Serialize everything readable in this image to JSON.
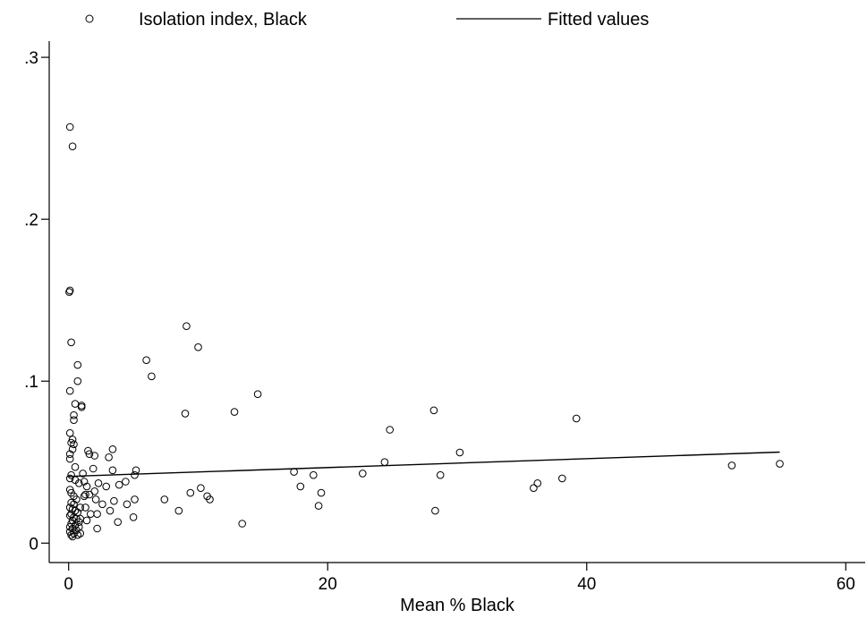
{
  "chart_data": {
    "type": "scatter",
    "xlabel": "Mean % Black",
    "ylabel": "",
    "xlim": [
      -1.5,
      61.5
    ],
    "ylim": [
      -0.012,
      0.31
    ],
    "x_ticks": [
      0,
      20,
      40,
      60
    ],
    "x_tick_labels": [
      "0",
      "20",
      "40",
      "60"
    ],
    "y_ticks": [
      0,
      0.1,
      0.2,
      0.3
    ],
    "y_tick_labels": [
      "0",
      ".1",
      ".2",
      ".3"
    ],
    "grid": false,
    "legend_position": "top",
    "series": [
      {
        "name": "Isolation index, Black",
        "kind": "scatter",
        "color": "#000000",
        "points": [
          [
            0.1,
            0.257
          ],
          [
            0.3,
            0.245
          ],
          [
            0.1,
            0.156
          ],
          [
            0.05,
            0.155
          ],
          [
            0.2,
            0.124
          ],
          [
            0.7,
            0.11
          ],
          [
            0.7,
            0.1
          ],
          [
            0.1,
            0.094
          ],
          [
            0.5,
            0.086
          ],
          [
            1.0,
            0.085
          ],
          [
            1.0,
            0.084
          ],
          [
            0.4,
            0.079
          ],
          [
            0.4,
            0.076
          ],
          [
            0.1,
            0.068
          ],
          [
            0.3,
            0.064
          ],
          [
            0.2,
            0.062
          ],
          [
            0.4,
            0.061
          ],
          [
            0.3,
            0.058
          ],
          [
            0.1,
            0.055
          ],
          [
            0.1,
            0.052
          ],
          [
            0.5,
            0.047
          ],
          [
            0.2,
            0.042
          ],
          [
            0.1,
            0.04
          ],
          [
            0.5,
            0.039
          ],
          [
            0.8,
            0.037
          ],
          [
            0.1,
            0.033
          ],
          [
            0.2,
            0.031
          ],
          [
            0.4,
            0.029
          ],
          [
            0.6,
            0.027
          ],
          [
            0.2,
            0.025
          ],
          [
            0.4,
            0.024
          ],
          [
            0.1,
            0.022
          ],
          [
            0.3,
            0.021
          ],
          [
            0.5,
            0.02
          ],
          [
            0.7,
            0.019
          ],
          [
            0.2,
            0.018
          ],
          [
            0.1,
            0.017
          ],
          [
            0.4,
            0.016
          ],
          [
            0.6,
            0.015
          ],
          [
            0.3,
            0.014
          ],
          [
            0.8,
            0.013
          ],
          [
            0.2,
            0.012
          ],
          [
            0.5,
            0.011
          ],
          [
            0.1,
            0.01
          ],
          [
            0.3,
            0.009
          ],
          [
            0.6,
            0.008
          ],
          [
            0.1,
            0.007
          ],
          [
            0.4,
            0.006
          ],
          [
            0.2,
            0.005
          ],
          [
            0.7,
            0.005
          ],
          [
            0.9,
            0.006
          ],
          [
            0.3,
            0.004
          ],
          [
            0.8,
            0.01
          ],
          [
            0.9,
            0.015
          ],
          [
            0.9,
            0.022
          ],
          [
            1.1,
            0.043
          ],
          [
            1.2,
            0.029
          ],
          [
            1.3,
            0.03
          ],
          [
            1.3,
            0.022
          ],
          [
            1.4,
            0.035
          ],
          [
            1.2,
            0.038
          ],
          [
            1.5,
            0.057
          ],
          [
            1.6,
            0.055
          ],
          [
            1.6,
            0.03
          ],
          [
            1.7,
            0.018
          ],
          [
            1.4,
            0.014
          ],
          [
            1.9,
            0.046
          ],
          [
            2.0,
            0.054
          ],
          [
            2.0,
            0.032
          ],
          [
            2.1,
            0.027
          ],
          [
            2.2,
            0.018
          ],
          [
            2.2,
            0.009
          ],
          [
            2.3,
            0.037
          ],
          [
            2.6,
            0.024
          ],
          [
            2.9,
            0.035
          ],
          [
            3.1,
            0.053
          ],
          [
            3.4,
            0.058
          ],
          [
            3.4,
            0.045
          ],
          [
            3.2,
            0.02
          ],
          [
            3.5,
            0.026
          ],
          [
            3.8,
            0.013
          ],
          [
            3.9,
            0.036
          ],
          [
            4.4,
            0.038
          ],
          [
            4.5,
            0.024
          ],
          [
            5.1,
            0.042
          ],
          [
            5.2,
            0.045
          ],
          [
            5.1,
            0.027
          ],
          [
            5.0,
            0.016
          ],
          [
            6.0,
            0.113
          ],
          [
            6.4,
            0.103
          ],
          [
            7.4,
            0.027
          ],
          [
            8.5,
            0.02
          ],
          [
            9.0,
            0.08
          ],
          [
            9.1,
            0.134
          ],
          [
            9.4,
            0.031
          ],
          [
            10.0,
            0.121
          ],
          [
            10.2,
            0.034
          ],
          [
            10.7,
            0.029
          ],
          [
            10.9,
            0.027
          ],
          [
            12.8,
            0.081
          ],
          [
            13.4,
            0.012
          ],
          [
            14.6,
            0.092
          ],
          [
            17.4,
            0.044
          ],
          [
            17.9,
            0.035
          ],
          [
            18.9,
            0.042
          ],
          [
            19.3,
            0.023
          ],
          [
            19.5,
            0.031
          ],
          [
            22.7,
            0.043
          ],
          [
            24.4,
            0.05
          ],
          [
            24.8,
            0.07
          ],
          [
            28.2,
            0.082
          ],
          [
            28.3,
            0.02
          ],
          [
            28.7,
            0.042
          ],
          [
            30.2,
            0.056
          ],
          [
            35.9,
            0.034
          ],
          [
            36.2,
            0.037
          ],
          [
            38.1,
            0.04
          ],
          [
            39.2,
            0.077
          ],
          [
            51.2,
            0.048
          ],
          [
            54.9,
            0.049
          ]
        ]
      },
      {
        "name": "Fitted values",
        "kind": "line",
        "color": "#000000",
        "points": [
          [
            0,
            0.0412
          ],
          [
            54.9,
            0.0562
          ]
        ]
      }
    ]
  }
}
